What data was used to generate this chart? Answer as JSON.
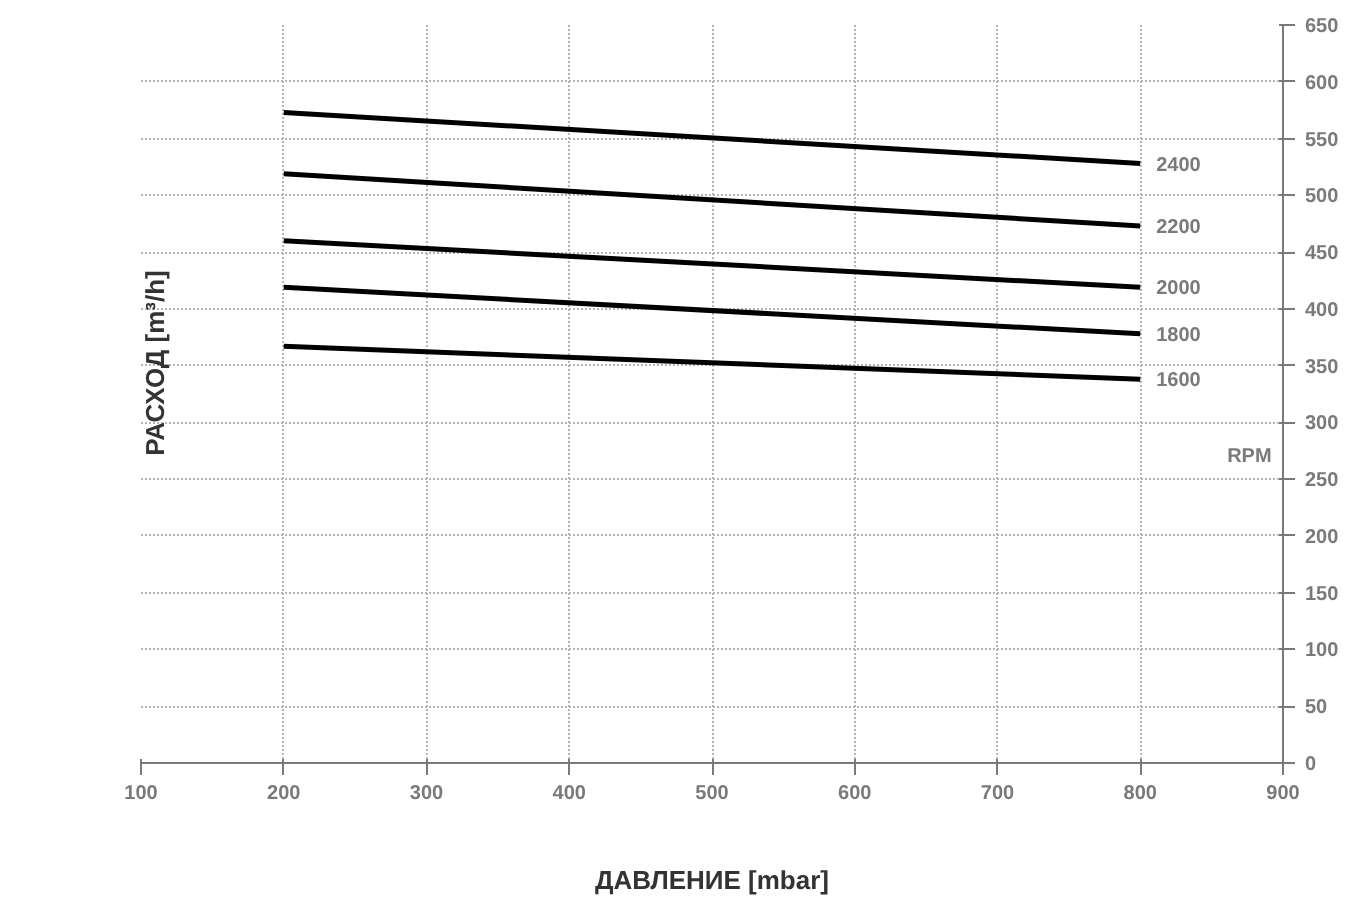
{
  "chart_data": {
    "type": "line",
    "xlabel": "ДАВЛЕНИЕ [mbar]",
    "ylabel": "РАСХОД [m³/h]",
    "x": [
      200,
      800
    ],
    "series": [
      {
        "name": "2400",
        "color": "#000000",
        "values": [
          573,
          528
        ]
      },
      {
        "name": "2200",
        "color": "#000000",
        "values": [
          519,
          473
        ]
      },
      {
        "name": "2000",
        "color": "#000000",
        "values": [
          460,
          419
        ]
      },
      {
        "name": "1800",
        "color": "#000000",
        "values": [
          419,
          378
        ]
      },
      {
        "name": "1600",
        "color": "#000000",
        "values": [
          367,
          338
        ]
      }
    ],
    "annotations": [
      "RPM"
    ],
    "xlim": [
      100,
      900
    ],
    "xticks": [
      100,
      200,
      300,
      400,
      500,
      600,
      700,
      800,
      900
    ],
    "ylim": [
      0,
      650
    ],
    "yticks": [
      0,
      50,
      100,
      150,
      200,
      250,
      300,
      350,
      400,
      450,
      500,
      550,
      600,
      650
    ],
    "grid": true,
    "line_style": "solid",
    "marker": "none"
  }
}
